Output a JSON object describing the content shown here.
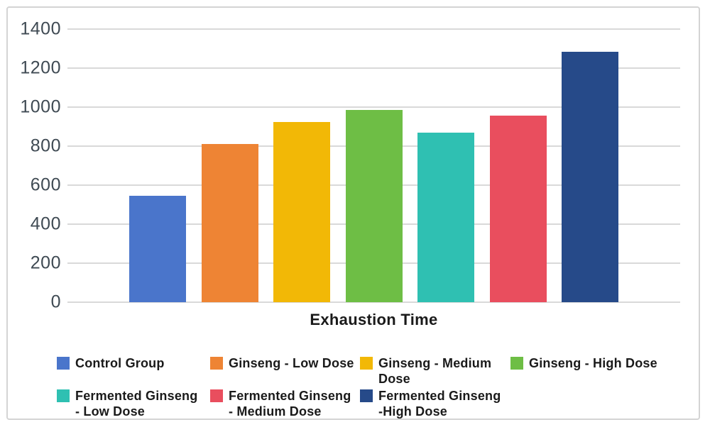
{
  "chart_data": {
    "type": "bar",
    "title": "",
    "xlabel": "Exhaustion Time",
    "ylabel": "",
    "ylim": [
      0,
      1400
    ],
    "yticks": [
      0,
      200,
      400,
      600,
      800,
      1000,
      1200,
      1400
    ],
    "grid": true,
    "legend_position": "bottom",
    "categories": [
      "Control Group",
      "Ginseng - Low Dose",
      "Ginseng - Medium Dose",
      "Ginseng - High Dose",
      "Fermented Ginseng - Low Dose",
      "Fermented Ginseng - Medium Dose",
      "Fermented Ginseng -High Dose"
    ],
    "values": [
      545,
      810,
      925,
      985,
      870,
      955,
      1285
    ],
    "colors": [
      "#4a75cb",
      "#ee8434",
      "#f2b806",
      "#6ebe45",
      "#2fc0b2",
      "#e94e5e",
      "#264a89"
    ]
  },
  "legend": {
    "items": [
      {
        "label": "Control Group",
        "display_label": "Control Group",
        "color": "#4a75cb"
      },
      {
        "label": "Ginseng - Low Dose",
        "display_label": "Ginseng - Low Dose",
        "color": "#ee8434"
      },
      {
        "label": "Ginseng - Medium Dose",
        "display_label": "Ginseng - Medium\nDose",
        "color": "#f2b806"
      },
      {
        "label": "Ginseng - High Dose",
        "display_label": "Ginseng - High Dose",
        "color": "#6ebe45"
      },
      {
        "label": "Fermented Ginseng - Low Dose",
        "display_label": "Fermented Ginseng\n - Low Dose",
        "color": "#2fc0b2"
      },
      {
        "label": "Fermented Ginseng - Medium Dose",
        "display_label": "Fermented Ginseng\n - Medium Dose",
        "color": "#e94e5e"
      },
      {
        "label": "Fermented Ginseng -High Dose",
        "display_label": "Fermented Ginseng\n-High Dose",
        "color": "#264a89"
      }
    ]
  },
  "colors": {
    "gridline": "#d9d9d9",
    "tick_label": "#3f4a53",
    "text": "#1a1a1a",
    "frame_border": "#d4d4d4",
    "background": "#ffffff"
  }
}
